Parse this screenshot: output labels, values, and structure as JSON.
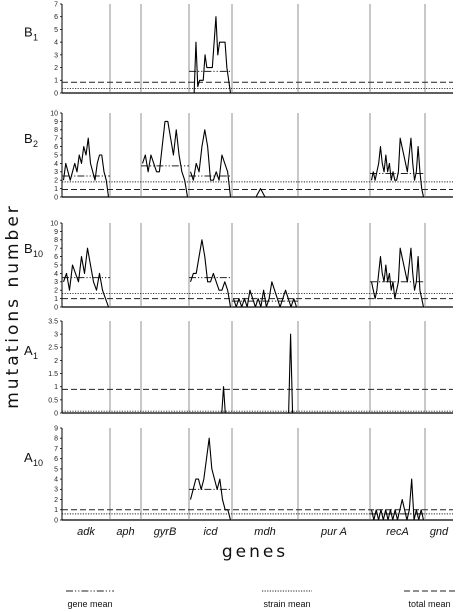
{
  "chart_data": {
    "type": "line",
    "ylabel": "mutations number",
    "xlabel": "genes",
    "genes": [
      "adk",
      "aph",
      "gyrB",
      "icd",
      "mdh",
      "pur A",
      "recA",
      "gnd"
    ],
    "legend": [
      {
        "label": "gene mean",
        "dash": "dash-dot-dot"
      },
      {
        "label": "strain mean",
        "dash": "dotted"
      },
      {
        "label": "total mean",
        "dash": "dashed"
      }
    ],
    "panels": [
      {
        "id": "B1",
        "label": "B",
        "sub": "1",
        "ylim": [
          0,
          7
        ],
        "yticks": [
          "0",
          "1",
          "2",
          "3",
          "4",
          "5",
          "6",
          "7"
        ],
        "total_mean": 0.85,
        "strain_mean": 0.35,
        "gene_means": [
          null,
          null,
          null,
          1.7,
          null,
          null,
          null,
          null
        ],
        "profiles": [
          [],
          [],
          [],
          [
            0,
            0,
            0,
            4,
            0.5,
            1,
            1,
            1,
            3,
            2,
            2,
            2,
            2,
            4,
            6,
            3,
            4,
            4,
            4,
            4,
            2,
            1,
            0
          ],
          [],
          [],
          [],
          []
        ]
      },
      {
        "id": "B2",
        "label": "B",
        "sub": "2",
        "ylim": [
          0,
          10
        ],
        "yticks": [
          "0",
          "1",
          "2",
          "3",
          "4",
          "5",
          "6",
          "7",
          "8",
          "9",
          "10"
        ],
        "total_mean": 0.9,
        "strain_mean": 1.8,
        "gene_means": [
          2.5,
          null,
          3.7,
          2.5,
          null,
          null,
          2.8,
          null
        ],
        "profiles": [
          [
            2,
            4,
            3,
            2,
            3,
            4,
            3,
            5,
            4,
            6,
            5,
            7,
            4,
            3,
            2,
            4,
            5,
            5,
            3,
            2,
            0
          ],
          [],
          [
            4,
            5,
            3,
            5,
            4,
            3,
            3,
            6,
            9,
            9,
            7,
            5,
            8,
            5,
            3,
            2,
            0
          ],
          [
            3,
            2,
            4,
            3,
            6,
            8,
            6,
            2,
            2,
            3,
            2,
            5,
            4,
            3,
            0
          ],
          [
            0,
            0,
            0,
            0,
            0,
            0,
            1,
            0,
            0,
            0,
            0,
            0,
            0,
            0,
            0
          ],
          [],
          [
            2,
            3,
            2,
            3,
            4,
            6,
            4,
            3,
            5,
            3,
            4,
            2,
            3,
            2,
            2,
            3,
            7,
            6,
            5,
            4,
            3,
            5,
            7,
            4,
            2,
            3,
            6,
            3,
            1,
            0
          ],
          []
        ]
      },
      {
        "id": "B10",
        "label": "B",
        "sub": "10",
        "ylim": [
          0,
          10
        ],
        "yticks": [
          "0",
          "1",
          "2",
          "3",
          "4",
          "5",
          "6",
          "7",
          "8",
          "9",
          "10"
        ],
        "total_mean": 1.0,
        "strain_mean": 1.6,
        "gene_means": [
          3.5,
          null,
          null,
          3.5,
          0.7,
          null,
          3.0,
          null
        ],
        "profiles": [
          [
            3,
            4,
            2,
            5,
            4,
            3,
            6,
            4,
            7,
            5,
            3,
            2,
            4,
            2,
            1,
            0
          ],
          [],
          [],
          [
            3,
            4,
            4,
            6,
            8,
            6,
            3,
            3,
            4,
            3,
            2,
            2,
            3,
            2,
            0
          ],
          [
            1,
            0,
            1,
            0,
            1,
            0,
            2,
            1,
            0,
            1,
            0,
            2,
            0,
            1,
            3,
            2,
            1,
            0,
            1,
            2,
            1,
            0,
            1,
            0
          ],
          [],
          [
            3,
            2,
            1,
            2,
            4,
            6,
            4,
            3,
            5,
            3,
            4,
            2,
            3,
            1,
            2,
            3,
            7,
            6,
            5,
            4,
            3,
            5,
            7,
            4,
            2,
            3,
            6,
            2,
            1,
            0
          ],
          []
        ]
      },
      {
        "id": "A1",
        "label": "A",
        "sub": "1",
        "ylim": [
          0,
          3.5
        ],
        "yticks": [
          "0",
          "0.5",
          "1",
          "1.5",
          "2",
          "2.5",
          "3",
          "3.5"
        ],
        "total_mean": 0.9,
        "strain_mean": 0.07,
        "gene_means": [
          null,
          null,
          null,
          null,
          null,
          null,
          null,
          null
        ],
        "profiles": [
          [],
          [],
          [],
          [
            0,
            0,
            0,
            0,
            0,
            0,
            0,
            0,
            0,
            0,
            0,
            0,
            0,
            0,
            0,
            0,
            0,
            0,
            0,
            1,
            0,
            0,
            0,
            0
          ],
          [
            0,
            0,
            0,
            0,
            0,
            0,
            0,
            0,
            0,
            0,
            0,
            0,
            0,
            0,
            0,
            0,
            0,
            0,
            0,
            0,
            0,
            0,
            0,
            0,
            0,
            0,
            0,
            0,
            0,
            3,
            0,
            0,
            0
          ],
          [],
          [],
          []
        ]
      },
      {
        "id": "A10",
        "label": "A",
        "sub": "10",
        "ylim": [
          0,
          9
        ],
        "yticks": [
          "0",
          "1",
          "2",
          "3",
          "4",
          "5",
          "6",
          "7",
          "8",
          "9"
        ],
        "total_mean": 1.0,
        "strain_mean": 0.6,
        "gene_means": [
          null,
          null,
          null,
          3.0,
          null,
          null,
          0.6,
          null
        ],
        "profiles": [
          [],
          [],
          [],
          [
            2,
            3,
            4,
            4,
            3,
            4,
            6,
            8,
            5,
            4,
            3,
            4,
            2,
            1,
            1,
            0
          ],
          [],
          [],
          [
            1,
            0,
            1,
            0,
            1,
            0,
            1,
            0,
            1,
            0,
            1,
            0,
            1,
            2,
            1,
            0,
            1,
            4,
            0,
            1,
            0,
            1,
            0
          ],
          []
        ]
      }
    ]
  }
}
